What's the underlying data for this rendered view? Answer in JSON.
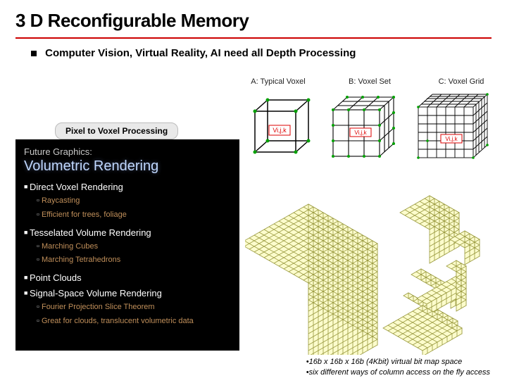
{
  "title": "3 D Reconfigurable Memory",
  "title_underline_color": "#c00000",
  "subtitle": "Computer Vision, Virtual Reality, AI need all Depth Processing",
  "pill_label": "Pixel to Voxel Processing",
  "voxel_headers": {
    "a": "A: Typical Voxel",
    "b": "B: Voxel Set",
    "c": "C: Voxel Grid"
  },
  "voxel_label": "Vi,j,k",
  "voxel_label_color": "#d00000",
  "voxel_tick_color": "#00a000",
  "cube_stroke": "#000000",
  "cube_fill": "#ffffff",
  "dark_panel": {
    "future": "Future Graphics:",
    "heading": "Volumetric Rendering",
    "sections": [
      {
        "title": "Direct Voxel Rendering",
        "items": [
          "Raycasting",
          "Efficient for trees, foliage"
        ]
      },
      {
        "title": "Tesselated Volume Rendering",
        "items": [
          "Marching Cubes",
          "Marching Tetrahedrons"
        ]
      },
      {
        "title": "Point Clouds",
        "items": []
      },
      {
        "title": "Signal-Space Volume Rendering",
        "items": [
          "Fourier Projection Slice Theorem",
          "Great for clouds, translucent volumetric data"
        ]
      }
    ],
    "bg": "#000000",
    "heading_color": "#c0d8ff",
    "item_color": "#c08f5a"
  },
  "iso": {
    "fill": "#fcfccc",
    "stroke": "#99993e"
  },
  "footnotes": [
    "•16b x 16b x 16b (4Kbit) virtual bit map space",
    "•six different ways of column access on the fly access"
  ]
}
